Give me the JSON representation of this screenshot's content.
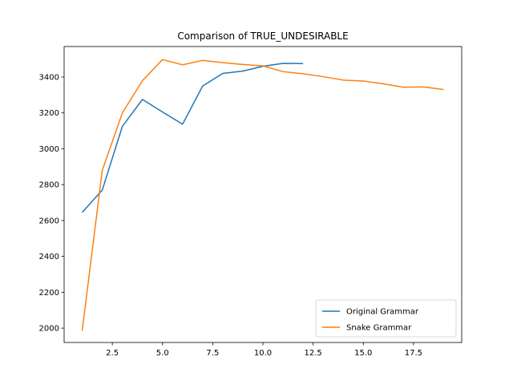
{
  "chart_data": {
    "type": "line",
    "title": "Comparison of TRUE_UNDESIRABLE",
    "xlabel": "",
    "ylabel": "",
    "xlim": [
      0.1,
      19.9
    ],
    "ylim": [
      1920,
      3570
    ],
    "xticks": [
      2.5,
      5.0,
      7.5,
      10.0,
      12.5,
      15.0,
      17.5
    ],
    "xtick_labels": [
      "2.5",
      "5.0",
      "7.5",
      "10.0",
      "12.5",
      "15.0",
      "17.5"
    ],
    "yticks": [
      2000,
      2200,
      2400,
      2600,
      2800,
      3000,
      3200,
      3400
    ],
    "ytick_labels": [
      "2000",
      "2200",
      "2400",
      "2600",
      "2800",
      "3000",
      "3200",
      "3400"
    ],
    "grid": false,
    "legend_position": "lower-right",
    "series": [
      {
        "name": "Original Grammar",
        "color": "#1f77b4",
        "x": [
          1,
          2,
          3,
          4,
          5,
          6,
          7,
          8,
          9,
          10,
          11,
          12
        ],
        "values": [
          2645,
          2770,
          3125,
          3275,
          3205,
          3137,
          3350,
          3420,
          3433,
          3460,
          3476,
          3475
        ]
      },
      {
        "name": "Snake Grammar",
        "color": "#ff7f0e",
        "x": [
          1,
          2,
          3,
          4,
          5,
          6,
          7,
          8,
          9,
          10,
          11,
          12,
          13,
          14,
          15,
          16,
          17,
          18,
          19
        ],
        "values": [
          1985,
          2880,
          3200,
          3380,
          3497,
          3468,
          3493,
          3480,
          3470,
          3462,
          3430,
          3418,
          3402,
          3383,
          3378,
          3362,
          3343,
          3345,
          3330
        ]
      }
    ]
  }
}
